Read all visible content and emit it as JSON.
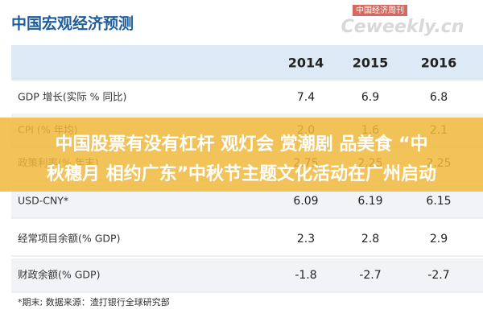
{
  "header": {
    "title": "中国宏观经济预测",
    "logo_top": "中国经济周刊",
    "logo_bottom": "Ceweekly.cn"
  },
  "table": {
    "columns": [
      "2014",
      "2015",
      "2016"
    ],
    "rows": [
      [
        "GDP 增长(实际 % 同比)",
        "7.4",
        "6.9",
        "6.8"
      ],
      [
        "CPI (% 年均)",
        "2.0",
        "1.6",
        "2.1"
      ],
      [
        "政策利率(% 年末)",
        "2.75",
        "2.25",
        "2.25"
      ],
      [
        "USD-CNY*",
        "6.09",
        "6.19",
        "6.15"
      ],
      [
        "经常项目余额(% GDP)",
        "2.3",
        "2.8",
        "2.9"
      ],
      [
        "财政余额(% GDP)",
        "-1.8",
        "-2.7",
        "-2.7"
      ]
    ]
  },
  "footnote": "*期末;    数据来源：渣打银行全球研究部",
  "banner": {
    "lines": [
      "中国股票有没有杠杆 观灯会 赏潮剧 品美食 “中",
      "秋穗月 相约广东”中秋节主题文化活动在广州启动"
    ]
  }
}
